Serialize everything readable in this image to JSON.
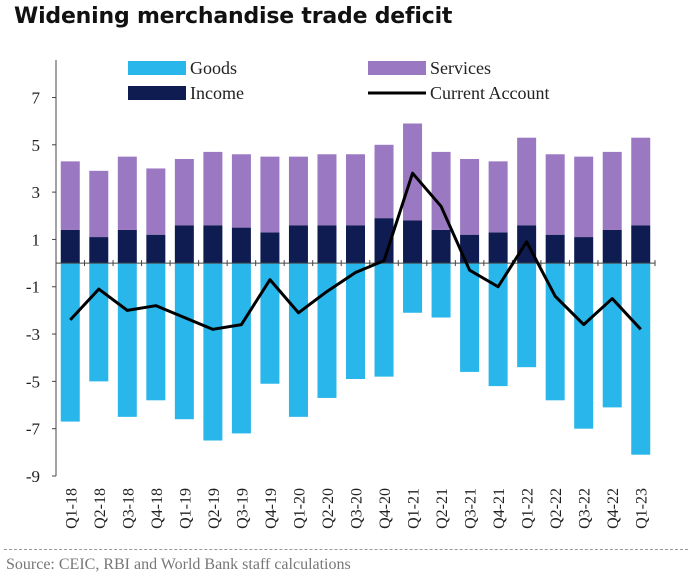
{
  "title": "Widening merchandise trade deficit",
  "source": "Source: CEIC, RBI and World Bank staff calculations",
  "colors": {
    "goods": "#29b6ea",
    "services": "#9b78c2",
    "income": "#0f1c52",
    "current_account": "#000000"
  },
  "chart_data": {
    "type": "bar",
    "stacked": true,
    "categories": [
      "Q1-18",
      "Q2-18",
      "Q3-18",
      "Q4-18",
      "Q1-19",
      "Q2-19",
      "Q3-19",
      "Q4-19",
      "Q1-20",
      "Q2-20",
      "Q3-20",
      "Q4-20",
      "Q1-21",
      "Q2-21",
      "Q3-21",
      "Q4-21",
      "Q1-22",
      "Q2-22",
      "Q3-22",
      "Q4-22",
      "Q1-23"
    ],
    "ylim": [
      -9,
      8.5
    ],
    "yticks": [
      7,
      5,
      3,
      1,
      -1,
      -3,
      -5,
      -7,
      -9
    ],
    "grid": false,
    "legend": "top",
    "series": [
      {
        "name": "Goods",
        "type": "bar",
        "values": [
          -6.7,
          -5.0,
          -6.5,
          -5.8,
          -6.6,
          -7.5,
          -7.2,
          -5.1,
          -6.5,
          -5.7,
          -4.9,
          -4.8,
          -2.1,
          -2.3,
          -4.6,
          -5.2,
          -4.4,
          -5.8,
          -7.0,
          -6.1,
          -8.1
        ]
      },
      {
        "name": "Income",
        "type": "bar",
        "values": [
          1.4,
          1.1,
          1.4,
          1.2,
          1.6,
          1.6,
          1.5,
          1.3,
          1.6,
          1.6,
          1.6,
          1.9,
          1.8,
          1.4,
          1.2,
          1.3,
          1.6,
          1.2,
          1.1,
          1.4,
          1.6
        ]
      },
      {
        "name": "Services",
        "type": "bar",
        "values": [
          2.9,
          2.8,
          3.1,
          2.8,
          2.8,
          3.1,
          3.1,
          3.2,
          2.9,
          3.0,
          3.0,
          3.1,
          4.1,
          3.3,
          3.2,
          3.0,
          3.7,
          3.4,
          3.4,
          3.3,
          3.7
        ]
      },
      {
        "name": "Current Account",
        "type": "line",
        "values": [
          -2.4,
          -1.1,
          -2.0,
          -1.8,
          -2.3,
          -2.8,
          -2.6,
          -0.7,
          -2.1,
          -1.2,
          -0.4,
          0.1,
          3.8,
          2.4,
          -0.3,
          -1.0,
          0.9,
          -1.4,
          -2.6,
          -1.5,
          -2.8
        ]
      }
    ],
    "legend_order": [
      "Goods",
      "Services",
      "Income",
      "Current Account"
    ]
  }
}
